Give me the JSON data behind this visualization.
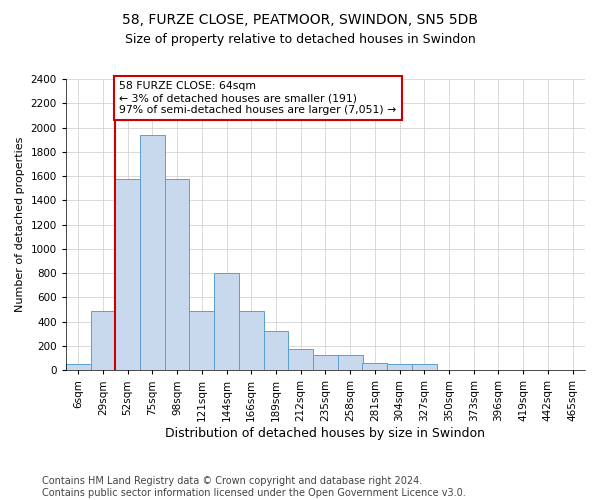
{
  "title": "58, FURZE CLOSE, PEATMOOR, SWINDON, SN5 5DB",
  "subtitle": "Size of property relative to detached houses in Swindon",
  "xlabel": "Distribution of detached houses by size in Swindon",
  "ylabel": "Number of detached properties",
  "categories": [
    "6sqm",
    "29sqm",
    "52sqm",
    "75sqm",
    "98sqm",
    "121sqm",
    "144sqm",
    "166sqm",
    "189sqm",
    "212sqm",
    "235sqm",
    "258sqm",
    "281sqm",
    "304sqm",
    "327sqm",
    "350sqm",
    "373sqm",
    "396sqm",
    "419sqm",
    "442sqm",
    "465sqm"
  ],
  "bar_heights": [
    50,
    490,
    1580,
    1940,
    1580,
    490,
    800,
    490,
    320,
    175,
    130,
    130,
    60,
    50,
    50,
    0,
    0,
    0,
    0,
    0,
    0
  ],
  "bar_color": "#c8d9ee",
  "bar_edge_color": "#5a9fd4",
  "vline_pos": 1.5,
  "vline_color": "#cc0000",
  "annotation_text": "58 FURZE CLOSE: 64sqm\n← 3% of detached houses are smaller (191)\n97% of semi-detached houses are larger (7,051) →",
  "annotation_box_color": "#ffffff",
  "annotation_box_edge": "#cc0000",
  "ylim": [
    0,
    2400
  ],
  "yticks": [
    0,
    200,
    400,
    600,
    800,
    1000,
    1200,
    1400,
    1600,
    1800,
    2000,
    2200,
    2400
  ],
  "footer_line1": "Contains HM Land Registry data © Crown copyright and database right 2024.",
  "footer_line2": "Contains public sector information licensed under the Open Government Licence v3.0.",
  "background_color": "#ffffff",
  "grid_color": "#cccccc",
  "title_fontsize": 10,
  "subtitle_fontsize": 9,
  "xlabel_fontsize": 9,
  "ylabel_fontsize": 8,
  "tick_fontsize": 7.5,
  "annotation_fontsize": 7.8,
  "footer_fontsize": 7
}
